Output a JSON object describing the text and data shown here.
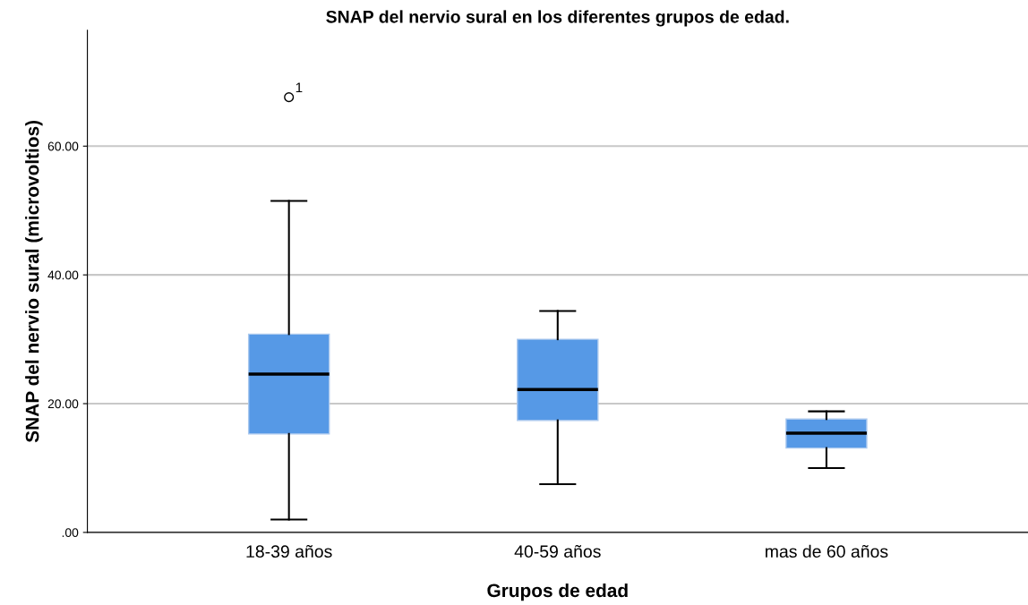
{
  "chart_data": {
    "type": "box",
    "title": "SNAP del nervio sural en los diferentes grupos de edad.",
    "xlabel": "Grupos de edad",
    "ylabel": "SNAP del nervio sural (microvoltios)",
    "categories": [
      "18-39 años",
      "40-59 años",
      "mas de 60 años"
    ],
    "color": "#5699e6",
    "boxes": [
      {
        "low": 2.0,
        "q1": 15.3,
        "median": 24.6,
        "q3": 30.8,
        "high": 51.5,
        "outliers": [
          67.6
        ]
      },
      {
        "low": 7.5,
        "q1": 17.4,
        "median": 22.2,
        "q3": 30.0,
        "high": 34.4
      },
      {
        "low": 10.0,
        "q1": 13.1,
        "median": 15.4,
        "q3": 17.6,
        "high": 18.8
      }
    ],
    "annotations": [
      "1"
    ],
    "ylim": [
      0,
      78
    ],
    "yticks": [
      {
        "value": 0,
        "label": ".00"
      },
      {
        "value": 20,
        "label": "20.00"
      },
      {
        "value": 40,
        "label": "40.00"
      },
      {
        "value": 60,
        "label": "60.00"
      }
    ],
    "grid": "y"
  }
}
